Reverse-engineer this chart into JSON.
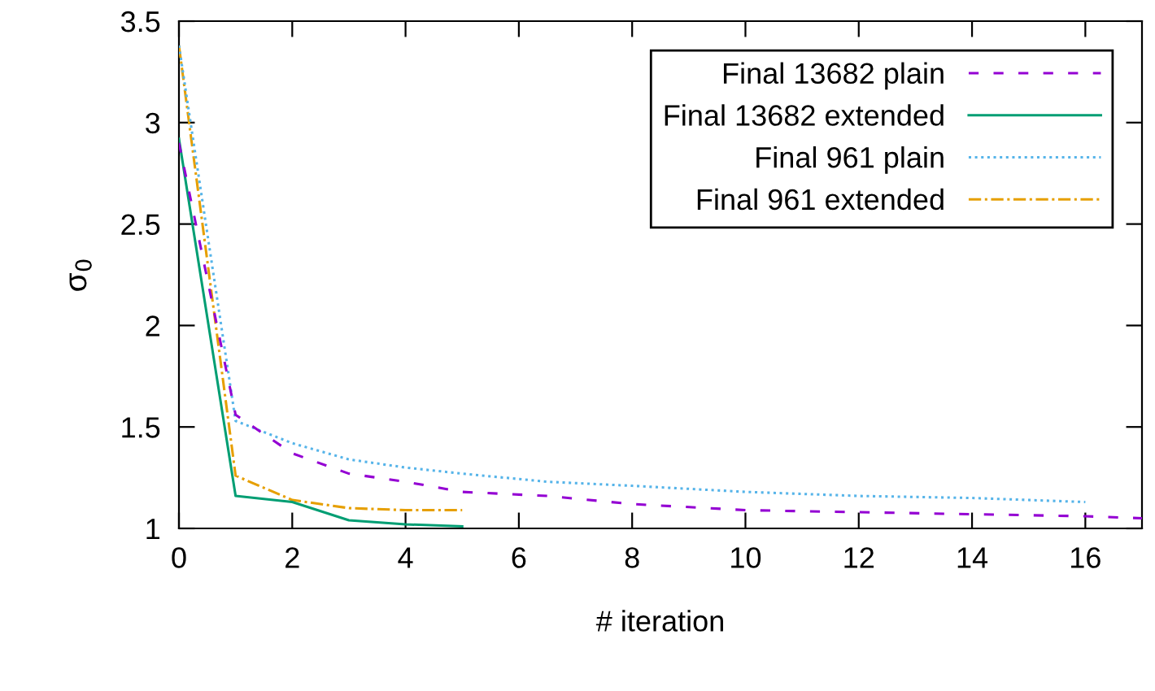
{
  "chart_data": {
    "type": "line",
    "xlabel": "# iteration",
    "ylabel": "σ$_{0}$",
    "xlim": [
      0,
      17
    ],
    "ylim": [
      1,
      3.5
    ],
    "xticks": [
      0,
      2,
      4,
      6,
      8,
      10,
      12,
      14,
      16
    ],
    "yticks": [
      1,
      1.5,
      2,
      2.5,
      3,
      3.5
    ],
    "grid": false,
    "legend": "top right",
    "marker": "none",
    "series": [
      {
        "name": "Final 13682 plain",
        "color": "#9400d3",
        "line_style": "dashed",
        "x": [
          0,
          1,
          2,
          3,
          4,
          5,
          6.5,
          8,
          10,
          12,
          14,
          16,
          17
        ],
        "values": [
          2.9,
          1.56,
          1.37,
          1.27,
          1.23,
          1.18,
          1.16,
          1.12,
          1.09,
          1.08,
          1.07,
          1.06,
          1.05
        ]
      },
      {
        "name": "Final 13682 extended",
        "color": "#009e73",
        "line_style": "solid",
        "x": [
          0,
          1,
          2,
          3,
          4,
          5
        ],
        "values": [
          2.92,
          1.16,
          1.13,
          1.04,
          1.02,
          1.01
        ]
      },
      {
        "name": "Final 961 plain",
        "color": "#56b4e9",
        "line_style": "dotted",
        "x": [
          0,
          1,
          2,
          3,
          4,
          5,
          6.5,
          8,
          10,
          12,
          14,
          16
        ],
        "values": [
          3.38,
          1.53,
          1.42,
          1.34,
          1.3,
          1.27,
          1.23,
          1.21,
          1.18,
          1.16,
          1.15,
          1.13
        ]
      },
      {
        "name": "Final 961 extended",
        "color": "#e69f00",
        "line_style": "dashdot",
        "x": [
          0,
          1,
          2,
          3,
          4,
          5
        ],
        "values": [
          3.38,
          1.26,
          1.14,
          1.1,
          1.09,
          1.09
        ]
      }
    ]
  }
}
